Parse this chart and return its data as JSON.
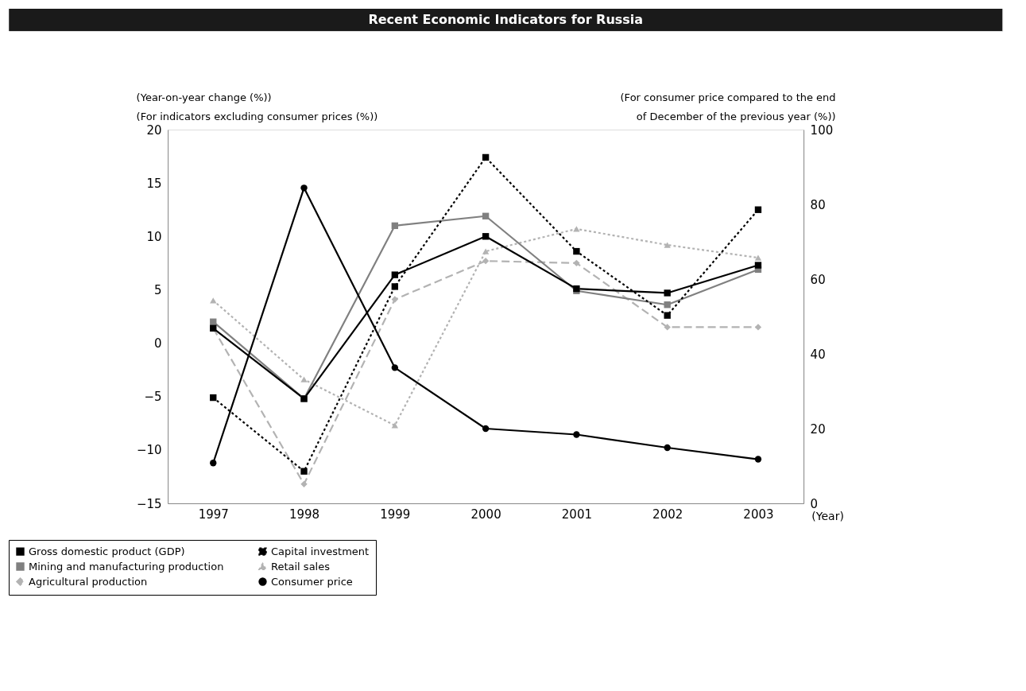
{
  "chart_data": {
    "type": "line",
    "title": "Recent Economic Indicators for Russia",
    "ylabel": "(Year-on-year change (%))\n(For indicators excluding consumer prices (%))",
    "y2label": "(For consumer price compared to the end\nof December of the previous year (%))",
    "xlabel": "(Year)",
    "categories": [
      "1997",
      "1998",
      "1999",
      "2000",
      "2001",
      "2002",
      "2003"
    ],
    "ylim": [
      -15,
      20
    ],
    "yticks": [
      -15,
      -10,
      -5,
      0,
      5,
      10,
      15,
      20
    ],
    "y2lim": [
      0,
      100
    ],
    "y2ticks": [
      0,
      20,
      40,
      60,
      80,
      100
    ],
    "grid": false,
    "legend": "bottom",
    "series": [
      {
        "name": "Gross domestic product (GDP)",
        "color": "#000000",
        "marker": "square",
        "line_style": "solid",
        "values": [
          1.4,
          -5.2,
          6.4,
          10.0,
          5.1,
          4.7,
          7.3
        ]
      },
      {
        "name": "Capital investment",
        "color": "#000000",
        "marker": "square",
        "line_style": "dotted",
        "values": [
          -5.1,
          -12.0,
          5.3,
          17.4,
          8.6,
          2.6,
          12.5
        ]
      },
      {
        "name": "Mining and manufacturing production",
        "color": "#808080",
        "marker": "square",
        "line_style": "solid",
        "values": [
          2.0,
          -5.2,
          11.0,
          11.9,
          4.9,
          3.6,
          6.9
        ]
      },
      {
        "name": "Retail sales",
        "color": "#b3b3b3",
        "marker": "triangle",
        "line_style": "dotted",
        "values": [
          4.0,
          -3.4,
          -7.7,
          8.6,
          10.7,
          9.2,
          8.0
        ]
      },
      {
        "name": "Agricultural production",
        "color": "#b3b3b3",
        "marker": "diamond",
        "line_style": "dashed",
        "values": [
          1.4,
          -13.2,
          4.1,
          7.7,
          7.5,
          1.5,
          1.5
        ]
      },
      {
        "name": "Consumer price",
        "color": "#000000",
        "marker": "circle",
        "line_style": "solid",
        "axis": "y2",
        "values": [
          10.8,
          84.4,
          36.3,
          20.0,
          18.4,
          14.9,
          11.8
        ]
      }
    ]
  }
}
